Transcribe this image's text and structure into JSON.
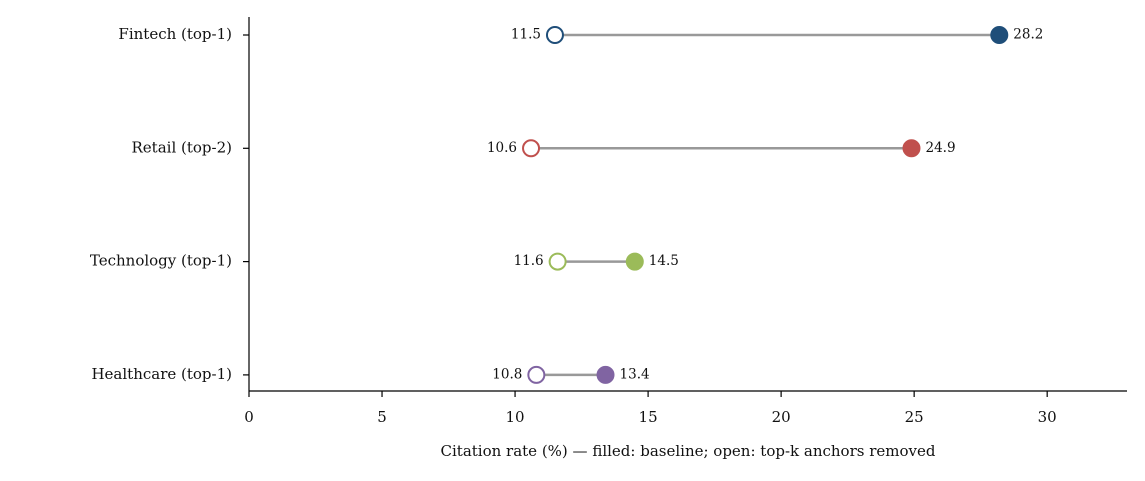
{
  "chart_data": {
    "type": "dumbbell",
    "categories": [
      "Fintech (top-1)",
      "Retail (top-2)",
      "Technology (top-1)",
      "Healthcare (top-1)"
    ],
    "colors": [
      "#1f4e79",
      "#c0504d",
      "#9bbb59",
      "#8064a2"
    ],
    "series": [
      {
        "values": [
          28.2,
          24.9,
          14.5,
          13.4
        ],
        "filled": true
      },
      {
        "values": [
          11.5,
          10.6,
          11.6,
          10.8
        ],
        "filled": false
      }
    ],
    "connector_color": "#999999",
    "xlabel": "Citation rate (%) — filled: baseline; open: top-k anchors removed",
    "xlim": [
      0,
      33
    ],
    "xticks": [
      0,
      5,
      10,
      15,
      20,
      25,
      30
    ]
  }
}
